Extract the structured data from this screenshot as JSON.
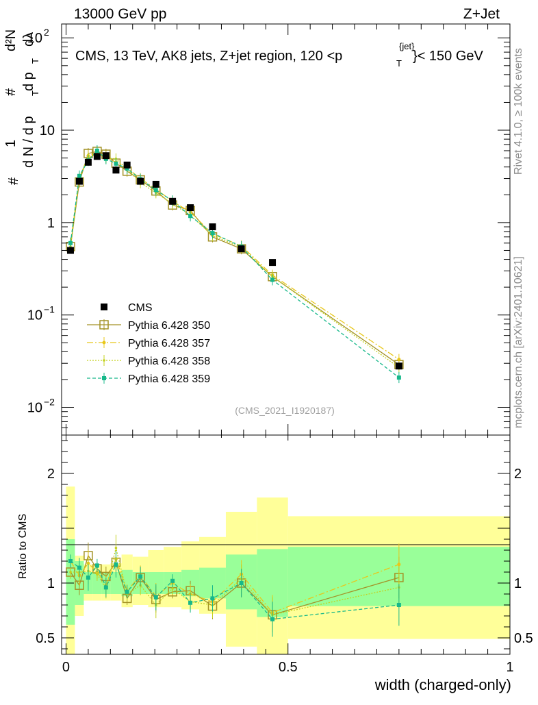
{
  "header": {
    "left": "13000 GeV pp",
    "right": "Z+Jet"
  },
  "side_text": {
    "rivet": "Rivet 4.1.0, ≥ 100k events",
    "mcplots": "mcplots.cern.ch [arXiv:2401.10621]"
  },
  "ylabel_parts": {
    "hash1": "#",
    "one": "1",
    "dN_slash": "d N / d p",
    "subT1": "T",
    "hash2": "#",
    "d2N": "d²N",
    "dpT_dlambda": "d p",
    "subT2": "T",
    "dlambda": "dλ"
  },
  "chart_data": {
    "type": "scatter",
    "title_parts": {
      "main": "CMS, 13 TeV, AK8 jets, Z+jet region, 120 <p",
      "sub": "T",
      "sup": "{jet}",
      "tail": "}< 150 GeV"
    },
    "analysis_id": "(CMS_2021_I1920187)",
    "xlabel": "width (charged-only)",
    "ylabel_ratio": "Ratio to CMS",
    "xlim": [
      -0.01,
      1.0
    ],
    "ylim_main_log10": [
      -2.3,
      2.15
    ],
    "ylim_ratio": [
      0.35,
      2.35
    ],
    "x_ticks": [
      0,
      0.5,
      1
    ],
    "x_tick_labels": [
      "0",
      "0.5",
      "1"
    ],
    "y_ticks_main": [
      {
        "value": 100,
        "base": "10",
        "exp": "2"
      },
      {
        "value": 10,
        "base": "10",
        "exp": ""
      },
      {
        "value": 1,
        "base": "1",
        "exp": ""
      },
      {
        "value": 0.1,
        "base": "10",
        "exp": "−1"
      },
      {
        "value": 0.01,
        "base": "10",
        "exp": "−2"
      }
    ],
    "y_ticks_ratio": [
      {
        "value": 2,
        "label": "2"
      },
      {
        "value": 1,
        "label": "1"
      },
      {
        "value": 0.5,
        "label": "0.5"
      }
    ],
    "bins": [
      [
        0.0,
        0.02
      ],
      [
        0.02,
        0.04
      ],
      [
        0.04,
        0.06
      ],
      [
        0.06,
        0.08
      ],
      [
        0.08,
        0.1
      ],
      [
        0.1,
        0.125
      ],
      [
        0.125,
        0.15
      ],
      [
        0.15,
        0.185
      ],
      [
        0.185,
        0.22
      ],
      [
        0.22,
        0.26
      ],
      [
        0.26,
        0.3
      ],
      [
        0.3,
        0.36
      ],
      [
        0.36,
        0.43
      ],
      [
        0.43,
        0.5
      ],
      [
        0.5,
        1.0
      ]
    ],
    "x": [
      0.01,
      0.03,
      0.05,
      0.07,
      0.09,
      0.1125,
      0.1375,
      0.1675,
      0.2025,
      0.24,
      0.28,
      0.33,
      0.395,
      0.465,
      0.75
    ],
    "data_series": {
      "name": "CMS",
      "values": [
        0.5,
        2.8,
        4.5,
        5.2,
        5.3,
        3.7,
        4.2,
        2.8,
        2.6,
        1.7,
        1.45,
        0.9,
        0.52,
        0.37,
        0.028
      ]
    },
    "series": [
      {
        "name": "Pythia 6.428 350",
        "color": "#a39226",
        "marker": "open-square",
        "values": [
          0.55,
          2.75,
          5.6,
          5.9,
          5.5,
          4.4,
          3.6,
          2.9,
          2.2,
          1.55,
          1.35,
          0.7,
          0.52,
          0.26,
          0.029
        ],
        "ratio": [
          1.1,
          0.98,
          1.25,
          1.13,
          1.06,
          1.19,
          0.86,
          1.05,
          0.85,
          0.92,
          0.93,
          0.79,
          1.0,
          0.71,
          1.05
        ]
      },
      {
        "name": "Pythia 6.428 357",
        "color": "#e8c71a",
        "marker": "star",
        "values": [
          0.6,
          3.0,
          5.3,
          5.7,
          5.1,
          4.5,
          3.9,
          3.0,
          2.3,
          1.7,
          1.3,
          0.75,
          0.56,
          0.27,
          0.033
        ],
        "ratio": [
          1.2,
          1.07,
          1.18,
          1.1,
          0.98,
          1.22,
          0.93,
          1.07,
          0.88,
          1.0,
          0.9,
          0.83,
          1.08,
          0.73,
          1.17
        ]
      },
      {
        "name": "Pythia 6.428 358",
        "color": "#c3d11f",
        "marker": "dot",
        "values": [
          0.55,
          3.1,
          5.0,
          5.6,
          5.0,
          4.9,
          3.8,
          2.7,
          2.1,
          1.6,
          1.2,
          0.72,
          0.54,
          0.26,
          0.027
        ],
        "ratio": [
          1.1,
          1.1,
          1.11,
          1.08,
          0.95,
          1.32,
          0.9,
          0.98,
          0.8,
          0.95,
          0.83,
          0.8,
          1.04,
          0.71,
          0.96
        ]
      },
      {
        "name": "Pythia 6.428 359",
        "color": "#17b88a",
        "marker": "filled-square",
        "values": [
          0.6,
          3.2,
          4.7,
          6.0,
          4.9,
          4.35,
          3.85,
          2.95,
          2.25,
          1.72,
          1.18,
          0.77,
          0.55,
          0.24,
          0.021
        ],
        "ratio": [
          1.2,
          1.14,
          1.05,
          1.16,
          0.96,
          1.17,
          0.92,
          1.06,
          0.87,
          1.02,
          0.82,
          0.86,
          1.0,
          0.67,
          0.8
        ]
      }
    ],
    "band_inner": [
      [
        0.62,
        1.4
      ],
      [
        0.8,
        1.2
      ],
      [
        0.9,
        1.1
      ],
      [
        0.9,
        1.1
      ],
      [
        0.9,
        1.1
      ],
      [
        0.9,
        1.1
      ],
      [
        0.88,
        1.12
      ],
      [
        0.9,
        1.1
      ],
      [
        0.9,
        1.1
      ],
      [
        0.9,
        1.1
      ],
      [
        0.88,
        1.12
      ],
      [
        0.86,
        1.14
      ],
      [
        0.76,
        1.26
      ],
      [
        0.69,
        1.31
      ],
      [
        0.79,
        1.33
      ]
    ],
    "band_outer": [
      [
        0.35,
        1.88
      ],
      [
        0.7,
        1.25
      ],
      [
        0.84,
        1.17
      ],
      [
        0.84,
        1.17
      ],
      [
        0.84,
        1.17
      ],
      [
        0.84,
        1.18
      ],
      [
        0.78,
        1.26
      ],
      [
        0.8,
        1.24
      ],
      [
        0.78,
        1.3
      ],
      [
        0.78,
        1.33
      ],
      [
        0.76,
        1.38
      ],
      [
        0.72,
        1.42
      ],
      [
        0.42,
        1.65
      ],
      [
        0.35,
        1.78
      ],
      [
        0.49,
        1.61
      ]
    ]
  }
}
